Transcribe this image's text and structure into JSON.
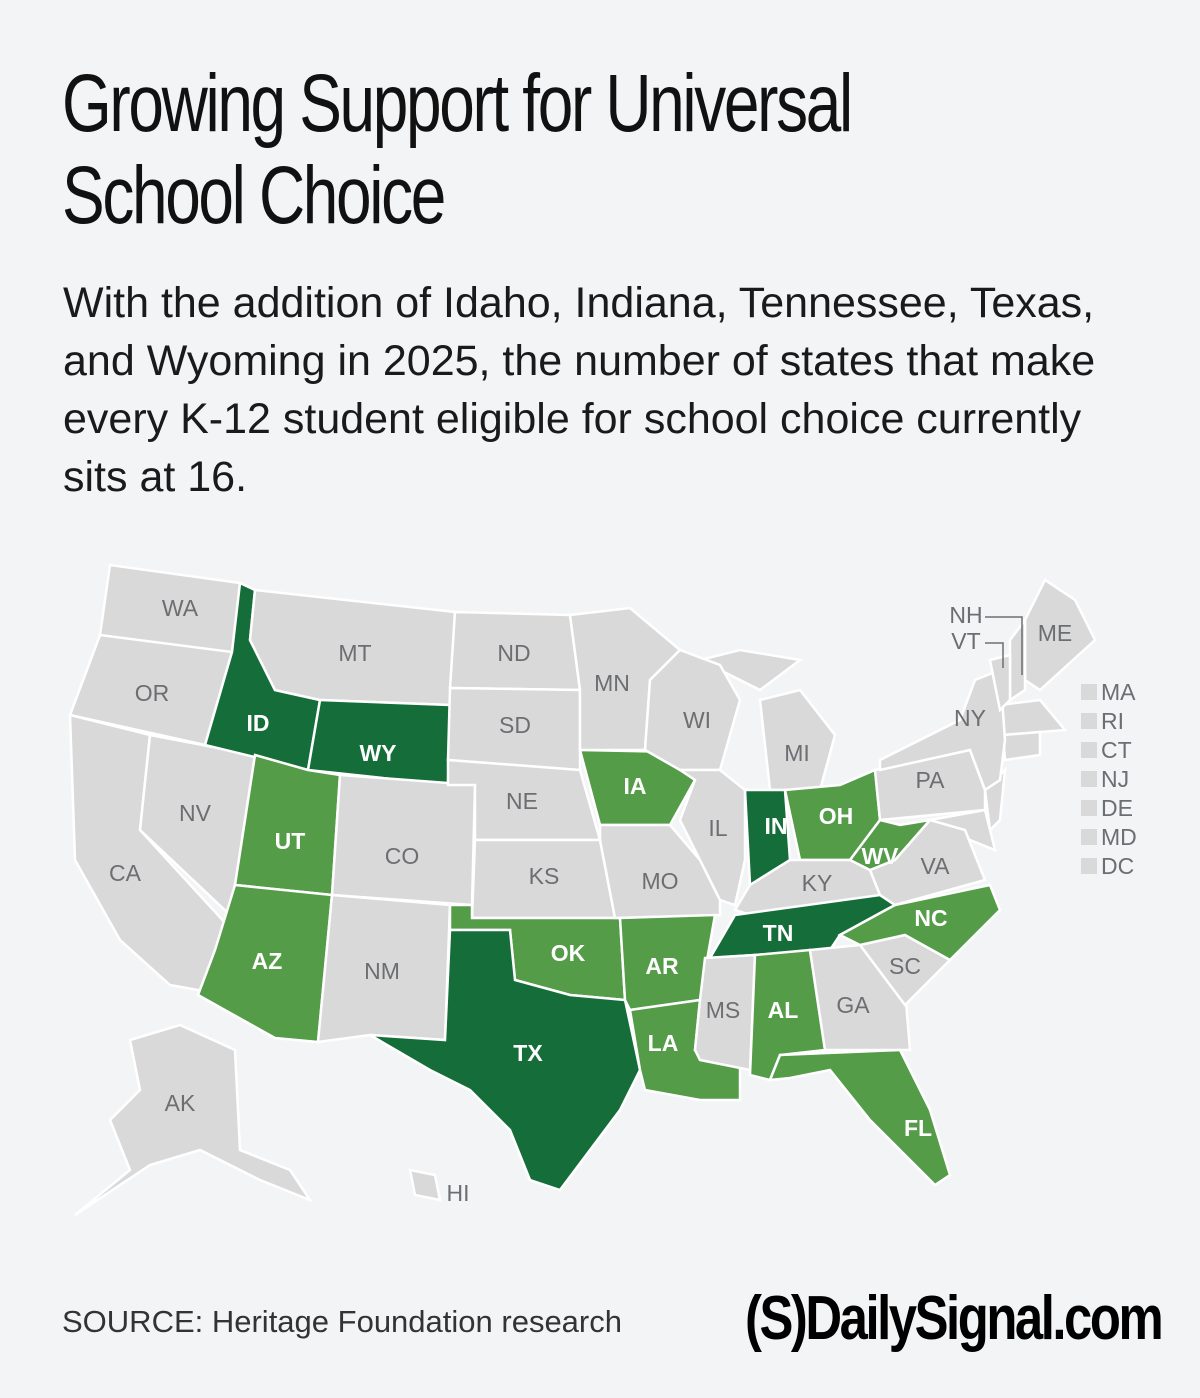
{
  "title": "Growing Support for Universal\nSchool Choice",
  "subtitle": "With the addition of Idaho, Indiana, Tennessee, Texas, and Wyoming in 2025, the number of states that make every K-12 student eligible for school choice currently sits at 16.",
  "colors": {
    "background": "#f3f4f6",
    "no_universal": "#d9d9da",
    "universal_prior": "#549c48",
    "universal_2025": "#156e3a",
    "label_gray": "#6d6e71"
  },
  "states": [
    {
      "abbr": "WA",
      "status": "none"
    },
    {
      "abbr": "OR",
      "status": "none"
    },
    {
      "abbr": "CA",
      "status": "none"
    },
    {
      "abbr": "NV",
      "status": "none"
    },
    {
      "abbr": "ID",
      "status": "2025"
    },
    {
      "abbr": "MT",
      "status": "none"
    },
    {
      "abbr": "WY",
      "status": "2025"
    },
    {
      "abbr": "UT",
      "status": "prior"
    },
    {
      "abbr": "CO",
      "status": "none"
    },
    {
      "abbr": "AZ",
      "status": "prior"
    },
    {
      "abbr": "NM",
      "status": "none"
    },
    {
      "abbr": "ND",
      "status": "none"
    },
    {
      "abbr": "SD",
      "status": "none"
    },
    {
      "abbr": "NE",
      "status": "none"
    },
    {
      "abbr": "KS",
      "status": "none"
    },
    {
      "abbr": "OK",
      "status": "prior"
    },
    {
      "abbr": "TX",
      "status": "2025"
    },
    {
      "abbr": "MN",
      "status": "none"
    },
    {
      "abbr": "IA",
      "status": "prior"
    },
    {
      "abbr": "MO",
      "status": "none"
    },
    {
      "abbr": "AR",
      "status": "prior"
    },
    {
      "abbr": "LA",
      "status": "prior"
    },
    {
      "abbr": "WI",
      "status": "none"
    },
    {
      "abbr": "IL",
      "status": "none"
    },
    {
      "abbr": "MI",
      "status": "none"
    },
    {
      "abbr": "IN",
      "status": "2025"
    },
    {
      "abbr": "OH",
      "status": "prior"
    },
    {
      "abbr": "KY",
      "status": "none"
    },
    {
      "abbr": "TN",
      "status": "2025"
    },
    {
      "abbr": "MS",
      "status": "none"
    },
    {
      "abbr": "AL",
      "status": "prior"
    },
    {
      "abbr": "GA",
      "status": "none"
    },
    {
      "abbr": "FL",
      "status": "prior"
    },
    {
      "abbr": "SC",
      "status": "none"
    },
    {
      "abbr": "NC",
      "status": "prior"
    },
    {
      "abbr": "VA",
      "status": "none"
    },
    {
      "abbr": "WV",
      "status": "prior"
    },
    {
      "abbr": "PA",
      "status": "none"
    },
    {
      "abbr": "NY",
      "status": "none"
    },
    {
      "abbr": "ME",
      "status": "none"
    },
    {
      "abbr": "NH",
      "status": "none"
    },
    {
      "abbr": "VT",
      "status": "none"
    },
    {
      "abbr": "AK",
      "status": "none"
    },
    {
      "abbr": "HI",
      "status": "none"
    }
  ],
  "small_states_legend": [
    {
      "abbr": "MA",
      "status": "none"
    },
    {
      "abbr": "RI",
      "status": "none"
    },
    {
      "abbr": "CT",
      "status": "none"
    },
    {
      "abbr": "NJ",
      "status": "none"
    },
    {
      "abbr": "DE",
      "status": "none"
    },
    {
      "abbr": "MD",
      "status": "none"
    },
    {
      "abbr": "DC",
      "status": "none"
    }
  ],
  "source": "SOURCE: Heritage Foundation research",
  "logo": "(S)DailySignal.com"
}
